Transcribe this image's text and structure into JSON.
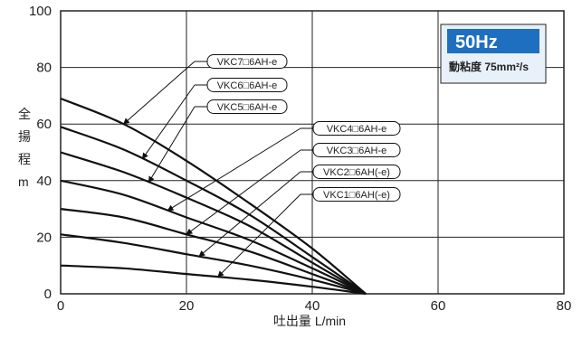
{
  "chart_data": {
    "type": "line",
    "x": [
      0,
      10,
      20,
      30,
      40,
      48.5
    ],
    "xlim": [
      0,
      80
    ],
    "ylim": [
      0,
      100
    ],
    "x_ticks": [
      "0",
      "20",
      "40",
      "60",
      "80"
    ],
    "y_ticks": [
      "0",
      "20",
      "40",
      "60",
      "80",
      "100"
    ],
    "xlabel": "吐出量 L/min",
    "ylabel": "全揚程 m",
    "grid": true,
    "badge": {
      "title": "50Hz",
      "subtitle": "動粘度 75mm²/s"
    },
    "series": [
      {
        "name": "VKC7□6AH-e",
        "values": [
          69,
          60,
          47,
          32,
          16,
          0
        ]
      },
      {
        "name": "VKC6□6AH-e",
        "values": [
          59,
          51,
          40,
          28,
          13,
          0
        ]
      },
      {
        "name": "VKC5□6AH-e",
        "values": [
          50,
          43,
          34,
          24,
          11,
          0
        ]
      },
      {
        "name": "VKC4□6AH-e",
        "values": [
          40,
          35,
          27,
          19,
          9,
          0
        ]
      },
      {
        "name": "VKC3□6AH-e",
        "values": [
          30,
          27,
          21,
          15,
          7,
          0
        ]
      },
      {
        "name": "VKC2□6AH(-e)",
        "values": [
          21,
          18,
          14,
          10,
          5,
          0
        ]
      },
      {
        "name": "VKC1□6AH(-e)",
        "values": [
          10,
          9,
          7,
          5,
          2.5,
          0
        ]
      }
    ]
  },
  "colors": {
    "line": "#111111",
    "grid": "#222222",
    "badge_fill": "#1f6fc0",
    "badge_panel": "#e8f0fa"
  }
}
